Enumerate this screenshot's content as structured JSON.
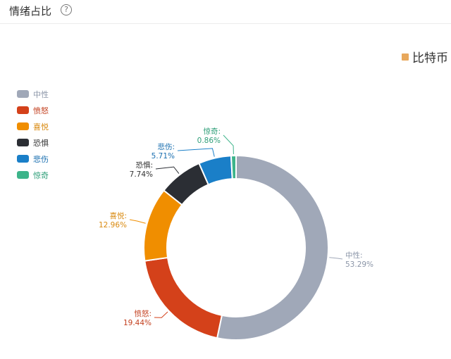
{
  "header": {
    "title": "情绪占比",
    "help_icon": "question-circle-icon"
  },
  "series_label": {
    "text": "比特币",
    "color": "#E8A85C"
  },
  "chart_data": {
    "type": "pie",
    "donut": true,
    "categories": [
      "中性",
      "愤怒",
      "喜悦",
      "恐惧",
      "悲伤",
      "惊奇"
    ],
    "values": [
      53.29,
      19.44,
      12.96,
      7.74,
      5.71,
      0.86
    ],
    "value_labels": [
      "53.29%",
      "19.44%",
      "12.96%",
      "7.74%",
      "5.71%",
      "0.86%"
    ],
    "colors": [
      "#A0A8B8",
      "#D4411A",
      "#F08E00",
      "#2B2E34",
      "#1A7FC8",
      "#3DB48A"
    ],
    "label_colors": [
      "#8C96A8",
      "#C33F1E",
      "#D98A10",
      "#333333",
      "#1A6FB0",
      "#2E9E78"
    ],
    "legend_position": "left"
  }
}
